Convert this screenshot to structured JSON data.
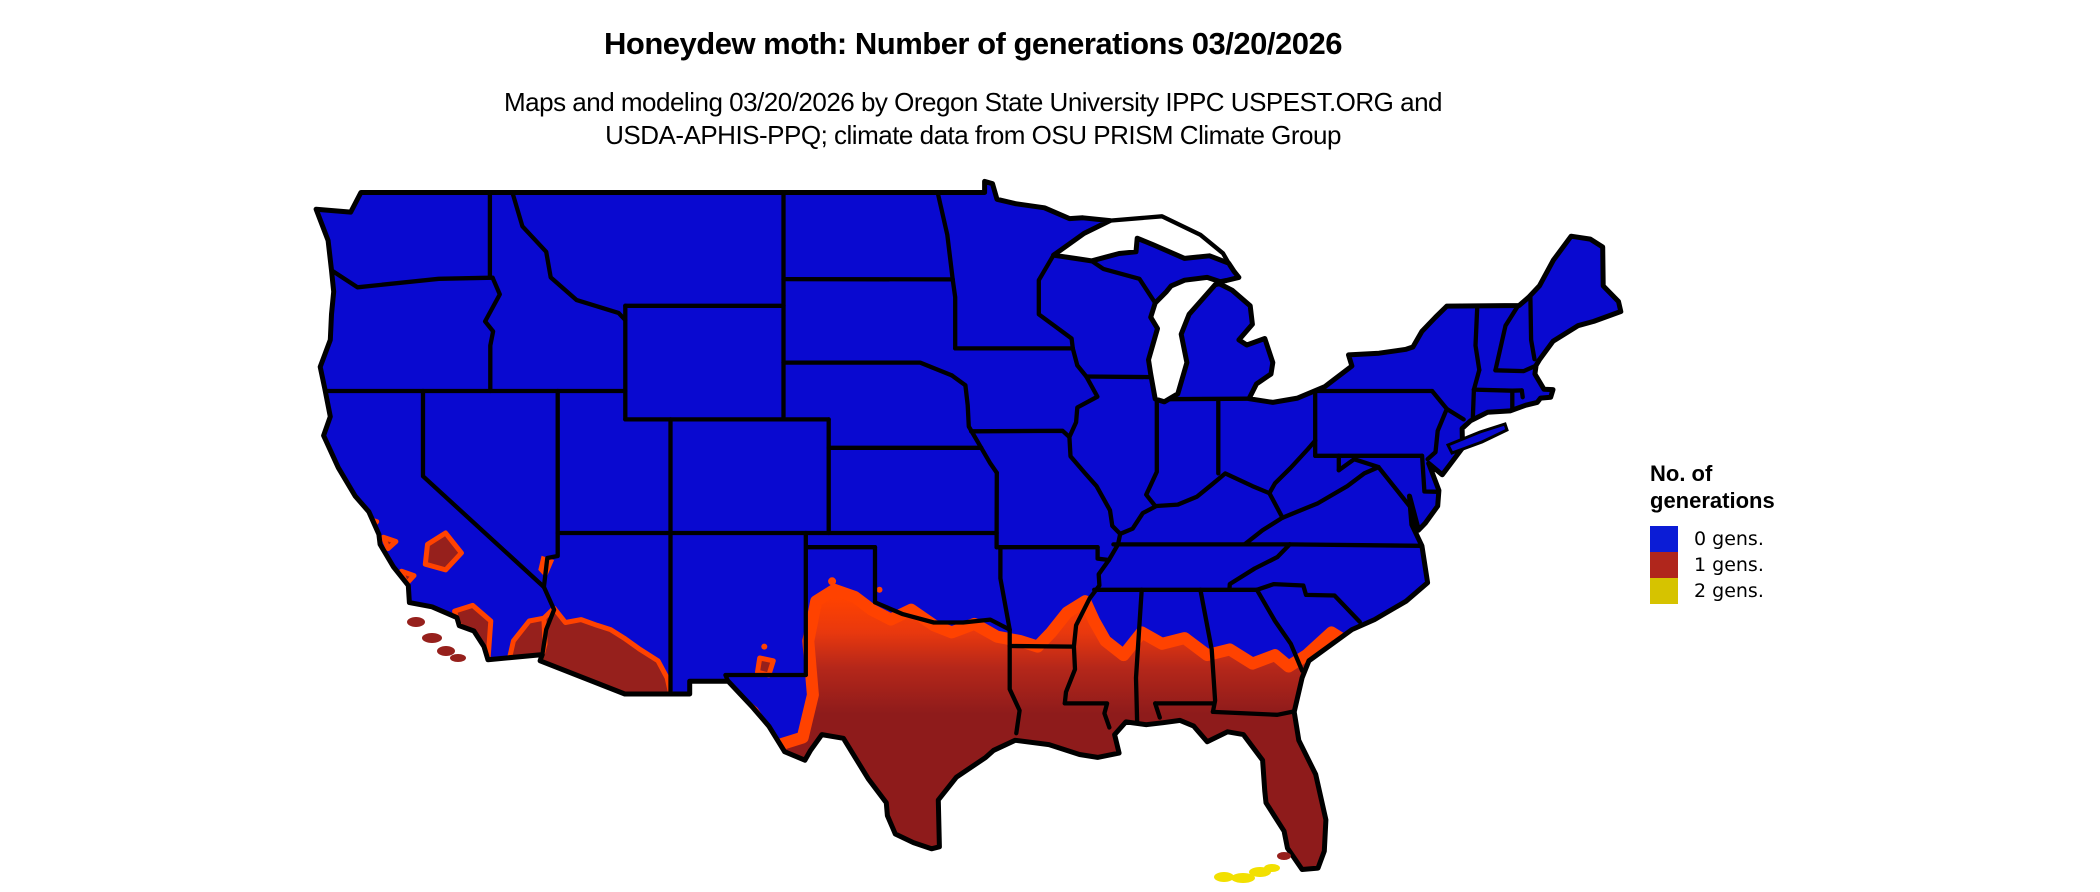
{
  "title": "Honeydew moth: Number of generations 03/20/2026",
  "subtitle": {
    "line1": "Maps and modeling 03/20/2026 by Oregon State University IPPC USPEST.ORG and",
    "line2": "USDA-APHIS-PPQ; climate data from OSU PRISM Climate Group"
  },
  "legend": {
    "title_line1": "No. of",
    "title_line2": "generations",
    "items": [
      {
        "label": "0 gens.",
        "color": "#0b1cd6"
      },
      {
        "label": "1 gens.",
        "color": "#b0261c"
      },
      {
        "label": "2 gens.",
        "color": "#d6c300"
      }
    ]
  },
  "map_data": {
    "type": "choropleth-map",
    "region": "Contiguous United States",
    "legend_title": "No. of generations",
    "classes": [
      {
        "label": "0 gens.",
        "color": "#0909d0",
        "extent": "most of the United States"
      },
      {
        "label": "1 gens.",
        "color": "#8e1b1b",
        "extent": "southern band: southern California and Arizona deserts, Rio Grande and southern Texas, Gulf Coast states, Florida; orange transition fringe along its northern edge"
      },
      {
        "label": "2 gens.",
        "color": "#f2e000",
        "extent": "small specks at the Florida Keys"
      }
    ],
    "colors": {
      "zero_gens_fill": "#0909d0",
      "one_gen_dark": "#96201c",
      "one_gen_darkest": "#8e1b1b",
      "transition_orange": "#ff4200",
      "two_gens_yellow": "#f2e000",
      "border_color": "#000000",
      "water_background": "#ffffff"
    }
  }
}
